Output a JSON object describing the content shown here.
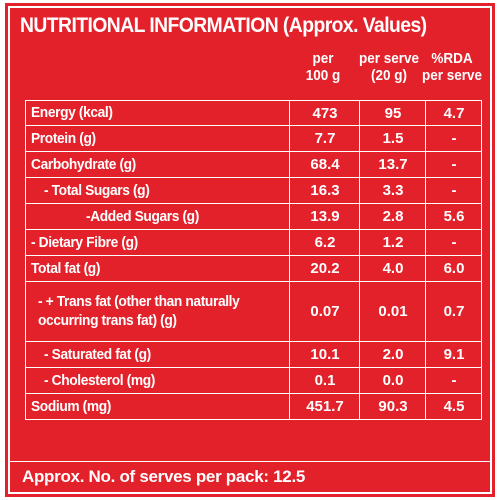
{
  "title": "NUTRITIONAL INFORMATION (Approx. Values)",
  "columns": [
    {
      "line1": "per",
      "line2": "100 g"
    },
    {
      "line1": "per serve",
      "line2": "(20 g)"
    },
    {
      "line1": "%RDA",
      "line2": "per serve"
    }
  ],
  "rows": [
    {
      "label": "Energy (kcal)",
      "per100g": "473",
      "perServe": "95",
      "rda": "4.7"
    },
    {
      "label": "Protein (g)",
      "per100g": "7.7",
      "perServe": "1.5",
      "rda": "-"
    },
    {
      "label": "Carbohydrate (g)",
      "per100g": "68.4",
      "perServe": "13.7",
      "rda": "-"
    },
    {
      "label": "- Total Sugars (g)",
      "per100g": "16.3",
      "perServe": "3.3",
      "rda": "-"
    },
    {
      "label": "-Added Sugars (g)",
      "per100g": "13.9",
      "perServe": "2.8",
      "rda": "5.6"
    },
    {
      "label": "- Dietary Fibre (g)",
      "per100g": "6.2",
      "perServe": "1.2",
      "rda": "-"
    },
    {
      "label": "Total fat (g)",
      "per100g": "20.2",
      "perServe": "4.0",
      "rda": "6.0"
    },
    {
      "label": "- + Trans fat (other than naturally occurring trans fat) (g)",
      "per100g": "0.07",
      "perServe": "0.01",
      "rda": "0.7"
    },
    {
      "label": "- Saturated fat (g)",
      "per100g": "10.1",
      "perServe": "2.0",
      "rda": "9.1"
    },
    {
      "label": "- Cholesterol (mg)",
      "per100g": "0.1",
      "perServe": "0.0",
      "rda": "-"
    },
    {
      "label": "Sodium (mg)",
      "per100g": "451.7",
      "perServe": "90.3",
      "rda": "4.5"
    }
  ],
  "footer": "Approx. No. of serves per pack: 12.5",
  "colors": {
    "background": "#e3212b",
    "text": "#ffffff"
  }
}
